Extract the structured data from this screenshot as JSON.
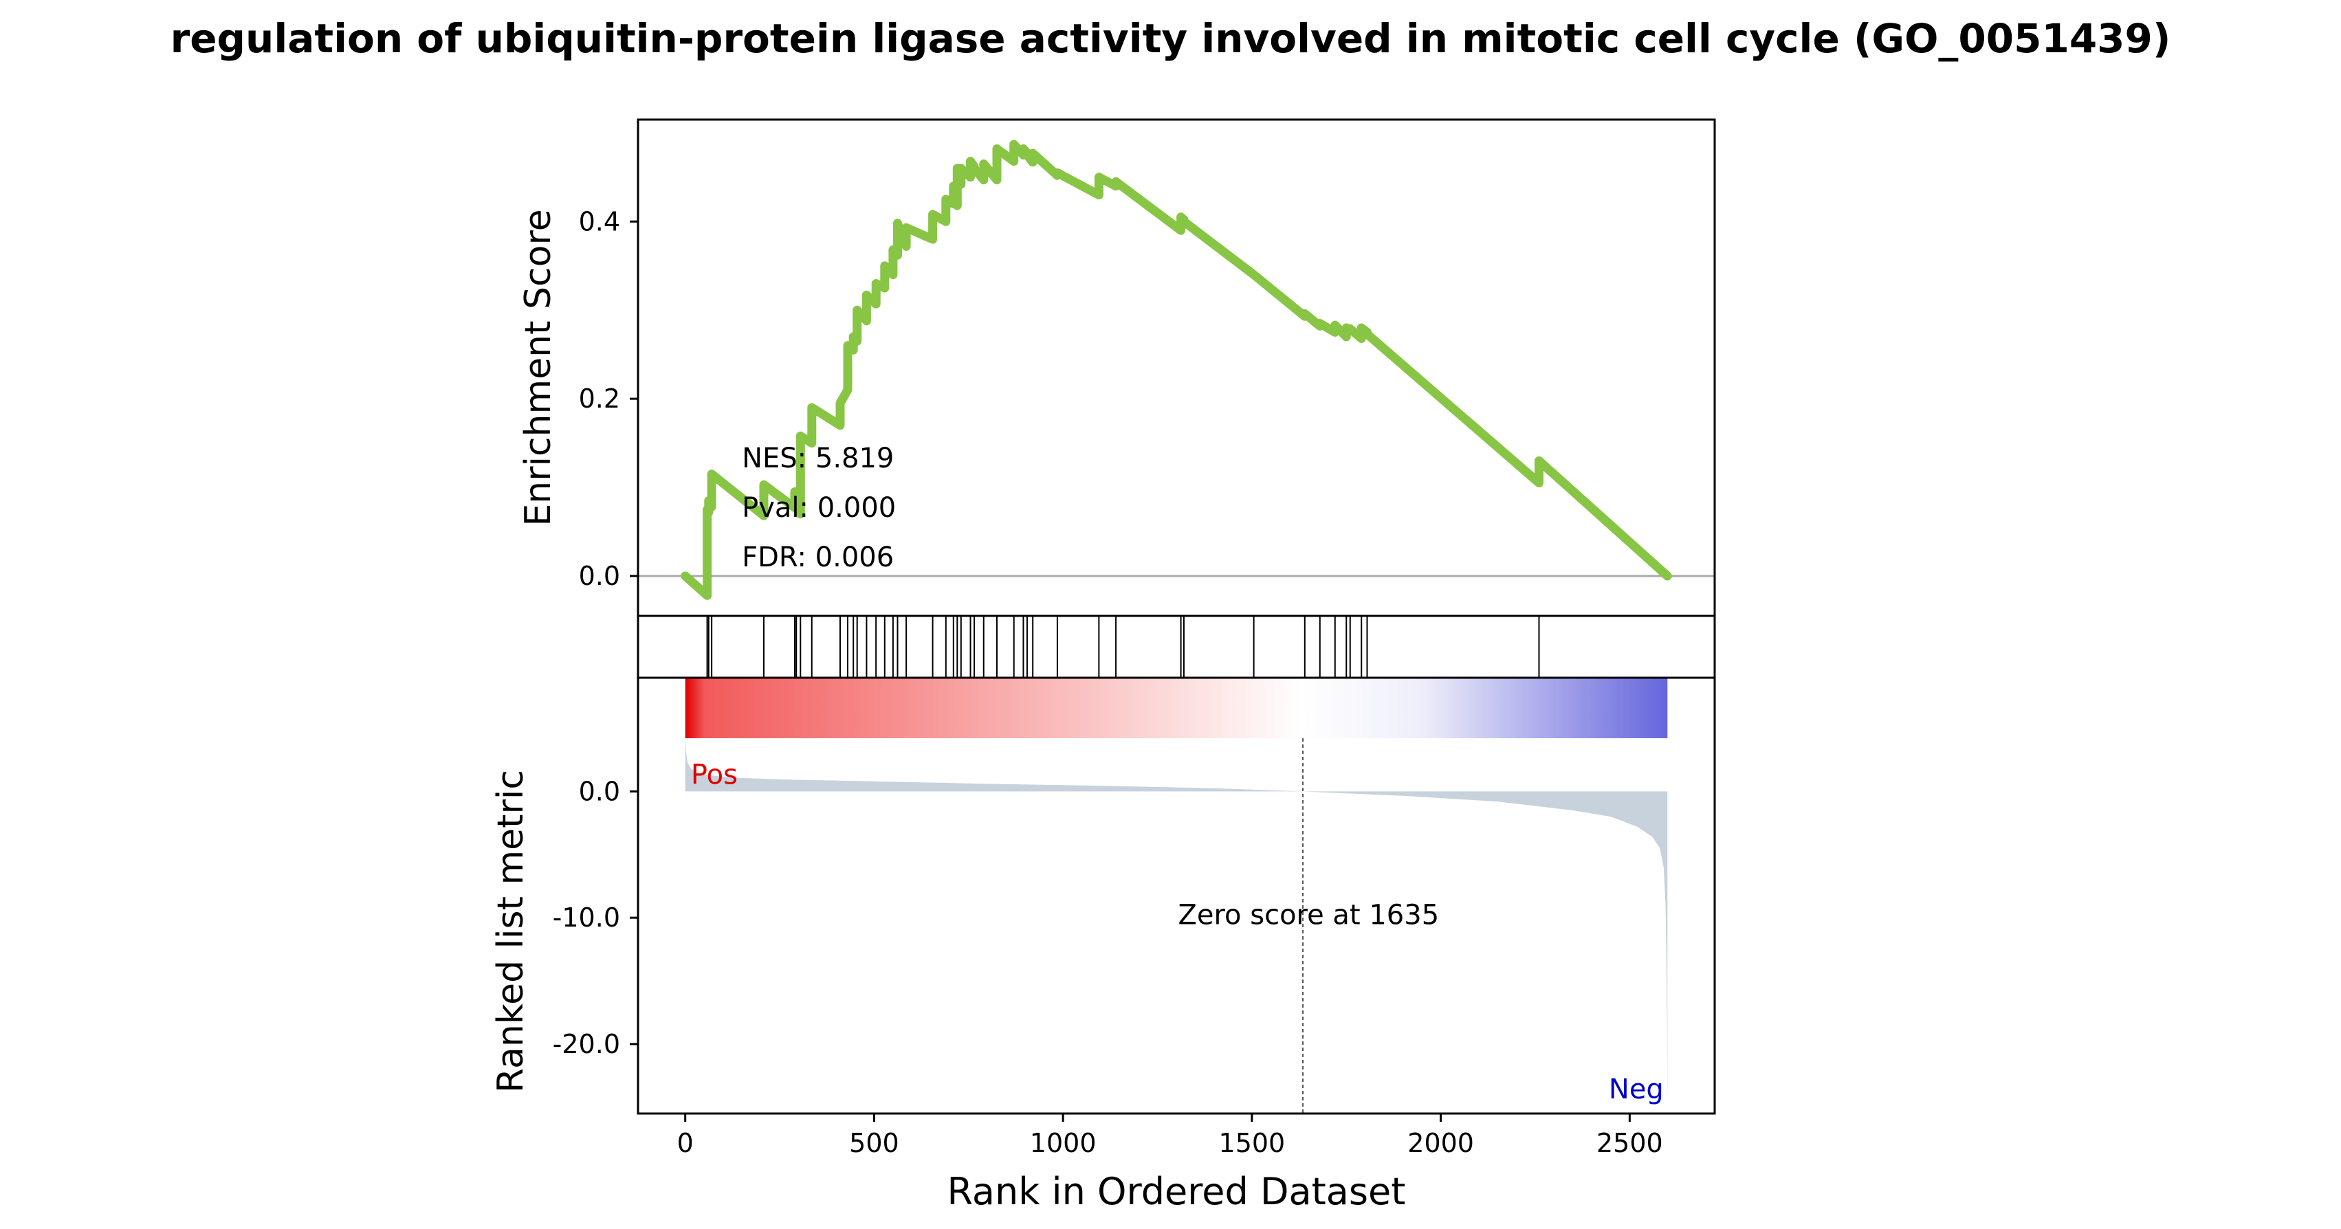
{
  "title": "regulation of ubiquitin-protein ligase activity involved in mitotic cell cycle (GO_0051439)",
  "chart_data": [
    {
      "type": "line",
      "panel": "enrichment",
      "title": "regulation of ubiquitin-protein ligase activity involved in mitotic cell cycle (GO_0051439)",
      "ylabel": "Enrichment Score",
      "xlim": [
        -125,
        2725
      ],
      "ylim": [
        -0.045,
        0.515
      ],
      "yticks": [
        0.0,
        0.2,
        0.4
      ],
      "ytick_labels": [
        "0.0",
        "0.2",
        "0.4"
      ],
      "line_color": "#88c544",
      "zero_line_color": "#aaaaaa",
      "stats": [
        "NES: 5.819",
        "Pval: 0.000",
        "FDR: 0.006"
      ],
      "x": [
        0,
        58,
        58,
        62,
        62,
        70,
        70,
        208,
        208,
        290,
        290,
        294,
        294,
        305,
        305,
        335,
        335,
        410,
        410,
        430,
        430,
        445,
        445,
        455,
        455,
        480,
        480,
        505,
        505,
        528,
        528,
        550,
        550,
        562,
        562,
        585,
        585,
        655,
        655,
        690,
        690,
        710,
        710,
        720,
        720,
        730,
        730,
        755,
        755,
        765,
        765,
        790,
        790,
        825,
        825,
        870,
        870,
        895,
        895,
        905,
        905,
        920,
        920,
        985,
        985,
        1095,
        1095,
        1140,
        1140,
        1312,
        1312,
        1320,
        1320,
        1505,
        1505,
        1640,
        1640,
        1680,
        1680,
        1720,
        1720,
        1750,
        1750,
        1760,
        1760,
        1790,
        1790,
        1805,
        1805,
        2260,
        2260,
        2600
      ],
      "y": [
        0.0,
        -0.022,
        0.075,
        0.072,
        0.085,
        0.078,
        0.115,
        0.068,
        0.103,
        0.077,
        0.095,
        0.093,
        0.08,
        0.07,
        0.158,
        0.15,
        0.19,
        0.17,
        0.195,
        0.21,
        0.26,
        0.255,
        0.27,
        0.265,
        0.3,
        0.288,
        0.317,
        0.307,
        0.33,
        0.325,
        0.35,
        0.34,
        0.368,
        0.362,
        0.398,
        0.372,
        0.393,
        0.38,
        0.408,
        0.4,
        0.425,
        0.42,
        0.44,
        0.418,
        0.46,
        0.442,
        0.46,
        0.45,
        0.468,
        0.462,
        0.46,
        0.447,
        0.465,
        0.447,
        0.482,
        0.468,
        0.487,
        0.475,
        0.482,
        0.477,
        0.475,
        0.467,
        0.477,
        0.452,
        0.455,
        0.43,
        0.45,
        0.44,
        0.445,
        0.39,
        0.405,
        0.402,
        0.4,
        0.34,
        0.34,
        0.293,
        0.296,
        0.282,
        0.285,
        0.275,
        0.283,
        0.27,
        0.28,
        0.278,
        0.279,
        0.268,
        0.28,
        0.275,
        0.273,
        0.105,
        0.13,
        0.0
      ]
    },
    {
      "type": "table",
      "panel": "hits",
      "hit_ranks": [
        58,
        62,
        70,
        208,
        290,
        294,
        305,
        335,
        410,
        430,
        445,
        455,
        480,
        505,
        528,
        550,
        562,
        585,
        655,
        690,
        710,
        720,
        730,
        755,
        765,
        790,
        825,
        870,
        895,
        905,
        920,
        985,
        1095,
        1140,
        1312,
        1320,
        1505,
        1640,
        1680,
        1720,
        1750,
        1760,
        1790,
        1805,
        2260
      ]
    },
    {
      "type": "area",
      "panel": "ranked_metric",
      "xlabel": "Rank in Ordered Dataset",
      "ylabel": "Ranked list metric",
      "xlim": [
        -125,
        2725
      ],
      "ylim": [
        -25.5,
        9.0
      ],
      "xticks": [
        0,
        500,
        1000,
        1500,
        2000,
        2500
      ],
      "xtick_labels": [
        "0",
        "500",
        "1000",
        "1500",
        "2000",
        "2500"
      ],
      "yticks": [
        0.0,
        -10.0,
        -20.0
      ],
      "ytick_labels": [
        "0.0",
        "-10.0",
        "-20.0"
      ],
      "fill_color": "#c8d2dc",
      "pos_label": "Pos",
      "neg_label": "Neg",
      "pos_color": "#e00000",
      "neg_color": "#0000cc",
      "zero_cross_rank": 1635,
      "zero_label": "Zero score at 1635",
      "x": [
        0,
        2,
        6,
        15,
        30,
        60,
        120,
        250,
        500,
        800,
        1100,
        1400,
        1635,
        1900,
        2150,
        2350,
        2450,
        2520,
        2560,
        2580,
        2590,
        2595,
        2598,
        2600
      ],
      "y": [
        4.5,
        3.2,
        2.3,
        1.8,
        1.5,
        1.3,
        1.1,
        0.95,
        0.8,
        0.6,
        0.45,
        0.25,
        0.0,
        -0.35,
        -0.8,
        -1.5,
        -2.0,
        -2.8,
        -3.6,
        -4.5,
        -6.0,
        -9.0,
        -15.0,
        -25.0
      ],
      "gradient": {
        "pos": "#e00000",
        "mid": "#ffffff",
        "neg": "#6666dd"
      }
    }
  ]
}
